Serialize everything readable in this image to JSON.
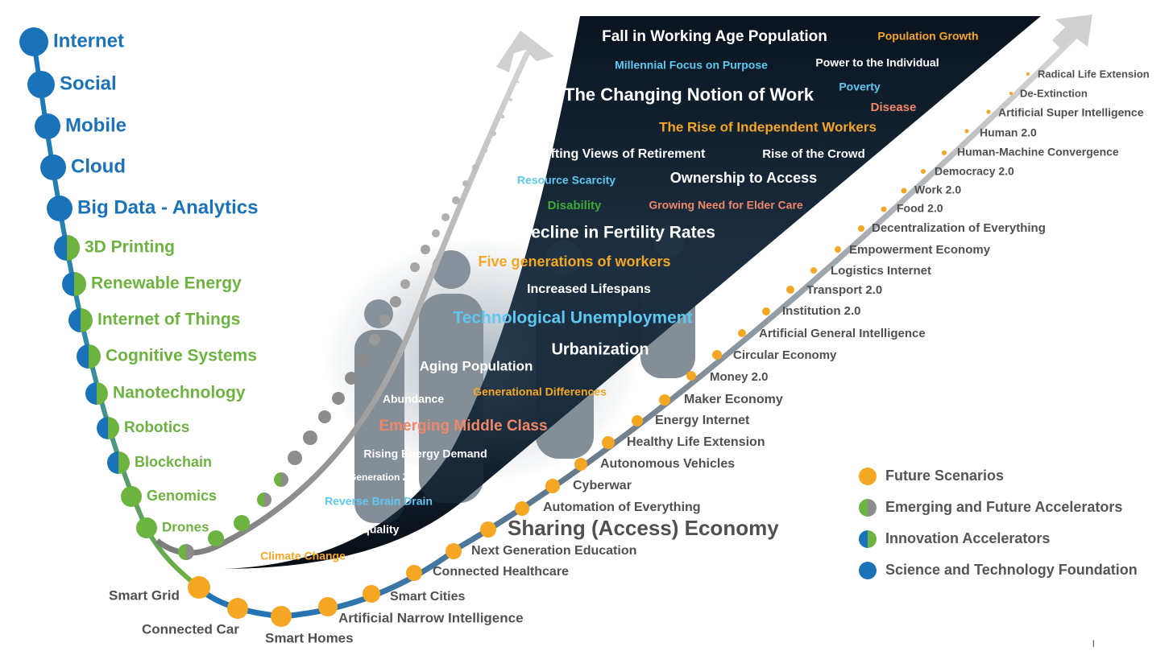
{
  "colors": {
    "foundation_blue": "#1a73b9",
    "accelerator_green": "#6cb33f",
    "scenario_orange": "#f5a623",
    "dark_panel": "#0b1622",
    "white": "#ffffff",
    "light_blue": "#5ec8f2",
    "salmon": "#f0876a",
    "gray_text": "#505050"
  },
  "left_curve": [
    {
      "label": "Internet",
      "kind": "foundation"
    },
    {
      "label": "Social",
      "kind": "foundation"
    },
    {
      "label": "Mobile",
      "kind": "foundation"
    },
    {
      "label": "Cloud",
      "kind": "foundation"
    },
    {
      "label": "Big Data - Analytics",
      "kind": "foundation"
    },
    {
      "label": "3D Printing",
      "kind": "innovation"
    },
    {
      "label": "Renewable Energy",
      "kind": "innovation"
    },
    {
      "label": "Internet of Things",
      "kind": "innovation"
    },
    {
      "label": "Cognitive Systems",
      "kind": "innovation"
    },
    {
      "label": "Nanotechnology",
      "kind": "innovation"
    },
    {
      "label": "Robotics",
      "kind": "innovation"
    },
    {
      "label": "Blockchain",
      "kind": "innovation"
    },
    {
      "label": "Genomics",
      "kind": "emerging"
    },
    {
      "label": "Drones",
      "kind": "emerging"
    }
  ],
  "future_scenarios": [
    {
      "label": "Smart Grid"
    },
    {
      "label": "Connected Car"
    },
    {
      "label": "Smart Homes"
    },
    {
      "label": "Artificial Narrow Intelligence"
    },
    {
      "label": "Smart Cities"
    },
    {
      "label": "Connected Healthcare"
    },
    {
      "label": "Next Generation Education"
    },
    {
      "label": "Sharing (Access) Economy"
    },
    {
      "label": "Automation of Everything"
    },
    {
      "label": "Cyberwar"
    },
    {
      "label": "Autonomous Vehicles"
    },
    {
      "label": "Healthy Life Extension"
    },
    {
      "label": "Energy Internet"
    },
    {
      "label": "Maker Economy"
    },
    {
      "label": "Money 2.0"
    },
    {
      "label": "Circular Economy"
    },
    {
      "label": "Artificial General Intelligence"
    },
    {
      "label": "Institution 2.0"
    },
    {
      "label": "Transport 2.0"
    },
    {
      "label": "Logistics Internet"
    },
    {
      "label": "Empowerment Economy"
    },
    {
      "label": "Decentralization of Everything"
    },
    {
      "label": "Food 2.0"
    },
    {
      "label": "Work 2.0"
    },
    {
      "label": "Democracy 2.0"
    },
    {
      "label": "Human-Machine Convergence"
    },
    {
      "label": "Human 2.0"
    },
    {
      "label": "Artificial Super Intelligence"
    },
    {
      "label": "De-Extinction"
    },
    {
      "label": "Radical Life Extension"
    }
  ],
  "panel_terms": [
    {
      "label": "Fall in Working Age Population",
      "color": "white"
    },
    {
      "label": "Population Growth",
      "color": "orange"
    },
    {
      "label": "Millennial Focus on Purpose",
      "color": "light_blue"
    },
    {
      "label": "Power to the Individual",
      "color": "white"
    },
    {
      "label": "Poverty",
      "color": "light_blue"
    },
    {
      "label": "The Changing Notion of Work",
      "color": "white"
    },
    {
      "label": "Disease",
      "color": "salmon"
    },
    {
      "label": "The Rise of Independent Workers",
      "color": "orange"
    },
    {
      "label": "Shifting Views of Retirement",
      "color": "white"
    },
    {
      "label": "Rise of the Crowd",
      "color": "white"
    },
    {
      "label": "Resource Scarcity",
      "color": "light_blue"
    },
    {
      "label": "Ownership to Access",
      "color": "white"
    },
    {
      "label": "Disability",
      "color": "green"
    },
    {
      "label": "Growing Need for Elder Care",
      "color": "salmon"
    },
    {
      "label": "Decline in Fertility Rates",
      "color": "white"
    },
    {
      "label": "Five generations of workers",
      "color": "orange"
    },
    {
      "label": "Increased Lifespans",
      "color": "white"
    },
    {
      "label": "Technological Unemployment",
      "color": "light_blue"
    },
    {
      "label": "Urbanization",
      "color": "white"
    },
    {
      "label": "Aging Population",
      "color": "white"
    },
    {
      "label": "Abundance",
      "color": "white"
    },
    {
      "label": "Generational Differences",
      "color": "orange"
    },
    {
      "label": "Emerging Middle Class",
      "color": "salmon"
    },
    {
      "label": "Rising Energy Demand",
      "color": "white"
    },
    {
      "label": "Generation Z",
      "color": "white"
    },
    {
      "label": "Reverse Brain Drain",
      "color": "light_blue"
    },
    {
      "label": "Global Inequality",
      "color": "white"
    },
    {
      "label": "Climate Change",
      "color": "orange"
    }
  ],
  "legend": [
    {
      "label": "Future Scenarios",
      "marker": "orange"
    },
    {
      "label": "Emerging and Future Accelerators",
      "marker": "green-gray"
    },
    {
      "label": "Innovation Accelerators",
      "marker": "green-blue"
    },
    {
      "label": "Science and Technology Foundation",
      "marker": "blue"
    }
  ]
}
